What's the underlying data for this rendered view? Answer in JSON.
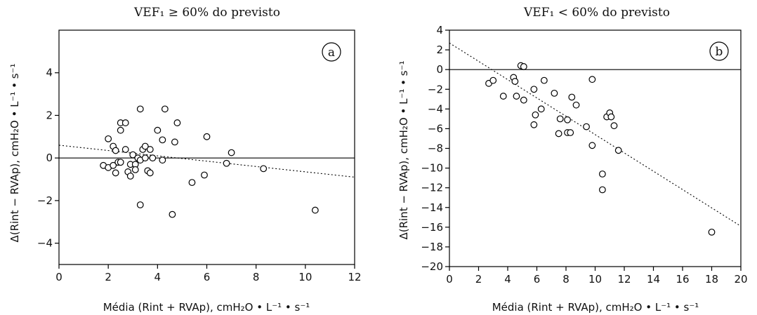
{
  "chart_data": [
    {
      "type": "scatter",
      "panel_label": "a",
      "title": "VEF₁ ≥ 60% do previsto",
      "xlabel": "Média (Rint + RVAp), cmH₂O • L⁻¹ • s⁻¹",
      "ylabel": "Δ(Rint − RVAp), cmH₂O • L⁻¹ • s⁻¹",
      "xlim": [
        0,
        12
      ],
      "ylim": [
        -5,
        6
      ],
      "xticks": [
        0,
        2,
        4,
        6,
        8,
        10,
        12
      ],
      "yticks": [
        -4,
        -2,
        0,
        2,
        4
      ],
      "zero_line": 0,
      "regression_line": {
        "x": [
          0,
          12
        ],
        "y": [
          0.6,
          -0.9
        ]
      },
      "points": [
        [
          1.8,
          -0.35
        ],
        [
          2.0,
          -0.45
        ],
        [
          2.0,
          0.9
        ],
        [
          2.2,
          -0.35
        ],
        [
          2.2,
          0.55
        ],
        [
          2.3,
          -0.7
        ],
        [
          2.3,
          0.35
        ],
        [
          2.4,
          -0.2
        ],
        [
          2.5,
          -0.2
        ],
        [
          2.5,
          1.3
        ],
        [
          2.5,
          1.65
        ],
        [
          2.7,
          1.65
        ],
        [
          2.7,
          0.4
        ],
        [
          2.8,
          -0.65
        ],
        [
          2.9,
          -0.85
        ],
        [
          2.9,
          -0.3
        ],
        [
          3.0,
          0.15
        ],
        [
          3.1,
          -0.3
        ],
        [
          3.1,
          -0.55
        ],
        [
          3.2,
          0.0
        ],
        [
          3.3,
          -0.1
        ],
        [
          3.3,
          2.3
        ],
        [
          3.3,
          -2.2
        ],
        [
          3.4,
          0.4
        ],
        [
          3.5,
          0.55
        ],
        [
          3.5,
          0.0
        ],
        [
          3.6,
          -0.6
        ],
        [
          3.7,
          -0.7
        ],
        [
          3.7,
          0.4
        ],
        [
          3.8,
          0.0
        ],
        [
          4.0,
          1.3
        ],
        [
          4.2,
          0.85
        ],
        [
          4.2,
          -0.1
        ],
        [
          4.3,
          2.3
        ],
        [
          4.6,
          -2.65
        ],
        [
          4.7,
          0.75
        ],
        [
          4.8,
          1.65
        ],
        [
          5.4,
          -1.15
        ],
        [
          5.9,
          -0.8
        ],
        [
          6.0,
          1.0
        ],
        [
          6.8,
          -0.25
        ],
        [
          7.0,
          0.25
        ],
        [
          8.3,
          -0.5
        ],
        [
          10.4,
          -2.45
        ]
      ]
    },
    {
      "type": "scatter",
      "panel_label": "b",
      "title": "VEF₁ < 60% do previsto",
      "xlabel": "Média (Rint + RVAp), cmH₂O • L⁻¹ • s⁻¹",
      "ylabel": "Δ(Rint − RVAp), cmH₂O • L⁻¹ • s⁻¹",
      "xlim": [
        0,
        20
      ],
      "ylim": [
        -20,
        4
      ],
      "xticks": [
        0,
        2,
        4,
        6,
        8,
        10,
        12,
        14,
        16,
        18,
        20
      ],
      "yticks": [
        -20,
        -18,
        -16,
        -14,
        -12,
        -10,
        -8,
        -6,
        -4,
        -2,
        0,
        2,
        4
      ],
      "zero_line": 0,
      "regression_line": {
        "x": [
          0,
          20
        ],
        "y": [
          2.7,
          -15.9
        ]
      },
      "points": [
        [
          2.7,
          -1.4
        ],
        [
          3.0,
          -1.1
        ],
        [
          3.7,
          -2.7
        ],
        [
          4.4,
          -0.8
        ],
        [
          4.5,
          -1.2
        ],
        [
          4.6,
          -2.7
        ],
        [
          4.9,
          0.4
        ],
        [
          5.1,
          0.3
        ],
        [
          5.1,
          -3.1
        ],
        [
          5.8,
          -2.0
        ],
        [
          5.8,
          -5.6
        ],
        [
          5.9,
          -4.6
        ],
        [
          6.3,
          -4.0
        ],
        [
          6.5,
          -1.1
        ],
        [
          7.2,
          -2.4
        ],
        [
          7.5,
          -6.5
        ],
        [
          7.6,
          -5.0
        ],
        [
          8.1,
          -6.4
        ],
        [
          8.1,
          -5.1
        ],
        [
          8.3,
          -6.4
        ],
        [
          8.4,
          -2.8
        ],
        [
          8.7,
          -3.6
        ],
        [
          9.4,
          -5.8
        ],
        [
          9.8,
          -7.7
        ],
        [
          9.8,
          -1.0
        ],
        [
          10.5,
          -10.6
        ],
        [
          10.5,
          -12.2
        ],
        [
          10.8,
          -4.8
        ],
        [
          11.0,
          -4.4
        ],
        [
          11.1,
          -4.8
        ],
        [
          11.3,
          -5.7
        ],
        [
          11.6,
          -8.2
        ],
        [
          18.0,
          -16.5
        ]
      ]
    }
  ]
}
